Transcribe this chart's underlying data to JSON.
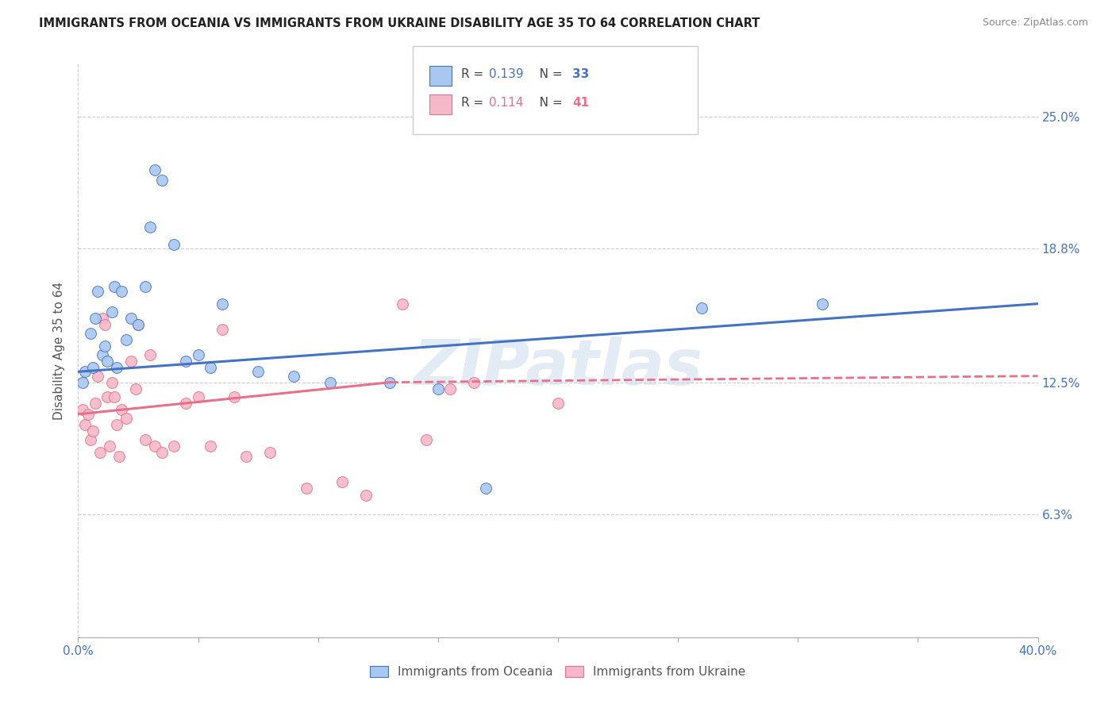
{
  "title": "IMMIGRANTS FROM OCEANIA VS IMMIGRANTS FROM UKRAINE DISABILITY AGE 35 TO 64 CORRELATION CHART",
  "source": "Source: ZipAtlas.com",
  "ylabel": "Disability Age 35 to 64",
  "ytick_labels": [
    "6.3%",
    "12.5%",
    "18.8%",
    "25.0%"
  ],
  "ytick_values": [
    6.3,
    12.5,
    18.8,
    25.0
  ],
  "xmin": 0.0,
  "xmax": 40.0,
  "ymin": 0.5,
  "ymax": 27.5,
  "legend_labels": [
    "Immigrants from Oceania",
    "Immigrants from Ukraine"
  ],
  "R_oceania": "0.139",
  "N_oceania": "33",
  "R_ukraine": "0.114",
  "N_ukraine": "41",
  "color_oceania": "#A8C8F0",
  "color_ukraine": "#F5B8C8",
  "line_color_oceania": "#4472C4",
  "line_color_ukraine": "#E8708A",
  "oceania_x": [
    0.2,
    0.3,
    0.5,
    0.6,
    0.7,
    0.8,
    1.0,
    1.1,
    1.2,
    1.4,
    1.5,
    1.6,
    1.8,
    2.0,
    2.2,
    2.5,
    2.8,
    3.0,
    3.2,
    3.5,
    4.0,
    4.5,
    5.0,
    5.5,
    6.0,
    7.5,
    9.0,
    10.5,
    13.0,
    15.0,
    17.0,
    26.0,
    31.0
  ],
  "oceania_y": [
    12.5,
    13.0,
    14.8,
    13.2,
    15.5,
    16.8,
    13.8,
    14.2,
    13.5,
    15.8,
    17.0,
    13.2,
    16.8,
    14.5,
    15.5,
    15.2,
    17.0,
    19.8,
    22.5,
    22.0,
    19.0,
    13.5,
    13.8,
    13.2,
    16.2,
    13.0,
    12.8,
    12.5,
    12.5,
    12.2,
    7.5,
    16.0,
    16.2
  ],
  "ukraine_x": [
    0.2,
    0.3,
    0.4,
    0.5,
    0.6,
    0.7,
    0.8,
    0.9,
    1.0,
    1.1,
    1.2,
    1.3,
    1.4,
    1.5,
    1.6,
    1.7,
    1.8,
    2.0,
    2.2,
    2.4,
    2.5,
    2.8,
    3.0,
    3.2,
    3.5,
    4.0,
    4.5,
    5.0,
    5.5,
    6.0,
    6.5,
    7.0,
    8.0,
    9.5,
    11.0,
    12.0,
    13.5,
    14.5,
    15.5,
    16.5,
    20.0
  ],
  "ukraine_y": [
    11.2,
    10.5,
    11.0,
    9.8,
    10.2,
    11.5,
    12.8,
    9.2,
    15.5,
    15.2,
    11.8,
    9.5,
    12.5,
    11.8,
    10.5,
    9.0,
    11.2,
    10.8,
    13.5,
    12.2,
    15.2,
    9.8,
    13.8,
    9.5,
    9.2,
    9.5,
    11.5,
    11.8,
    9.5,
    15.0,
    11.8,
    9.0,
    9.2,
    7.5,
    7.8,
    7.2,
    16.2,
    9.8,
    12.2,
    12.5,
    11.5
  ],
  "grid_color": "#CCCCCC",
  "bg_color": "#FFFFFF",
  "watermark": "ZIPatlas",
  "marker_size": 100,
  "xtick_positions": [
    0,
    5,
    10,
    15,
    20,
    25,
    30,
    35,
    40
  ]
}
